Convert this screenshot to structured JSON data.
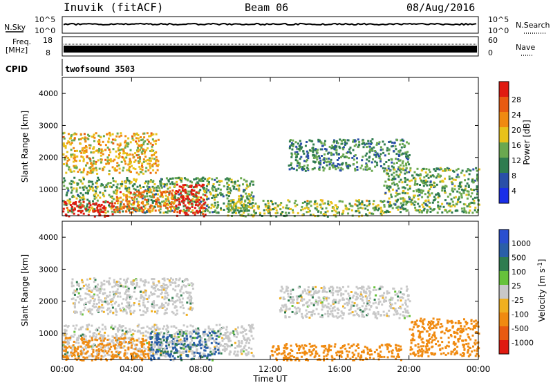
{
  "header": {
    "station": "Inuvik (fitACF)",
    "beam": "Beam 06",
    "date": "08/Aug/2016"
  },
  "status_panels": {
    "nsky": {
      "label": "N.Sky",
      "ticks": [
        "10^5",
        "10^0"
      ],
      "right_label": "N.Search",
      "right_ticks": [
        "10^5",
        "10^0"
      ]
    },
    "freq": {
      "label_1": "Freq.",
      "label_2": "[MHz]",
      "ticks": [
        "18",
        "8"
      ],
      "right_label": "Nave",
      "right_ticks": [
        "60",
        "0"
      ]
    },
    "cpid": {
      "label": "CPID",
      "value": "twofsound 3503"
    }
  },
  "colors": {
    "power_scale": [
      "#1a2ee8",
      "#2a4fa8",
      "#2f7c4f",
      "#6aa84f",
      "#e8c21a",
      "#f08a10",
      "#e85a10",
      "#e01a10"
    ],
    "velocity_scale": [
      "#2a4fd0",
      "#2a5fa8",
      "#2f7c4f",
      "#66c23a",
      "#c8c8c8",
      "#f0b020",
      "#f08a10",
      "#e85a10",
      "#e01a10"
    ],
    "ground_scatter": "#c8c8c8"
  },
  "chart_data": [
    {
      "type": "heatmap",
      "title": "",
      "xlabel": "Time UT",
      "ylabel": "Slant Range [km]",
      "xlim": [
        "00:00",
        "24:00"
      ],
      "ylim": [
        180,
        4500
      ],
      "x_ticks": [
        "00:00",
        "04:00",
        "08:00",
        "12:00",
        "16:00",
        "20:00",
        "00:00"
      ],
      "y_ticks": [
        1000,
        2000,
        3000,
        4000
      ],
      "colorbar": {
        "label": "Power [dB]",
        "ticks": [
          "28",
          "24",
          "20",
          "16",
          "12",
          "8",
          "4"
        ],
        "range": [
          0,
          30
        ]
      },
      "features": [
        {
          "t0": 0.0,
          "t1": 5.5,
          "r0": 1500,
          "r1": 2800,
          "level": 18
        },
        {
          "t0": 0.0,
          "t1": 11.0,
          "r0": 300,
          "r1": 1400,
          "level": 12
        },
        {
          "t0": 0.0,
          "t1": 3.0,
          "r0": 180,
          "r1": 650,
          "level": 30
        },
        {
          "t0": 6.5,
          "t1": 8.2,
          "r0": 180,
          "r1": 1200,
          "level": 30
        },
        {
          "t0": 3.0,
          "t1": 6.5,
          "r0": 300,
          "r1": 1000,
          "level": 22
        },
        {
          "t0": 9.5,
          "t1": 18.5,
          "r0": 180,
          "r1": 700,
          "level": 14
        },
        {
          "t0": 13.0,
          "t1": 20.0,
          "r0": 1600,
          "r1": 2600,
          "level": 10
        },
        {
          "t0": 18.5,
          "t1": 24.0,
          "r0": 300,
          "r1": 1700,
          "level": 12
        }
      ]
    },
    {
      "type": "heatmap",
      "title": "",
      "xlabel": "Time UT",
      "ylabel": "Slant Range [km]",
      "xlim": [
        "00:00",
        "24:00"
      ],
      "ylim": [
        180,
        4500
      ],
      "x_ticks": [
        "00:00",
        "04:00",
        "08:00",
        "12:00",
        "16:00",
        "20:00",
        "00:00"
      ],
      "y_ticks": [
        1000,
        2000,
        3000,
        4000
      ],
      "colorbar": {
        "label": "Velocity [m s^-1]",
        "ticks": [
          "1000",
          "500",
          "100",
          "25",
          "-25",
          "-100",
          "-500",
          "-1000"
        ],
        "range": [
          -1000,
          1000
        ]
      },
      "features": [
        {
          "t0": 0.5,
          "t1": 7.5,
          "r0": 1600,
          "r1": 2750,
          "kind": "ground"
        },
        {
          "t0": 0.0,
          "t1": 11.0,
          "r0": 300,
          "r1": 1300,
          "kind": "ground"
        },
        {
          "t0": 0.0,
          "t1": 5.0,
          "r0": 180,
          "r1": 900,
          "velocity": -300
        },
        {
          "t0": 5.0,
          "t1": 9.0,
          "r0": 180,
          "r1": 1100,
          "velocity": 120
        },
        {
          "t0": 12.5,
          "t1": 20.0,
          "r0": 1500,
          "r1": 2500,
          "kind": "ground"
        },
        {
          "t0": 12.0,
          "t1": 19.5,
          "r0": 180,
          "r1": 700,
          "velocity": -250
        },
        {
          "t0": 20.0,
          "t1": 24.0,
          "r0": 300,
          "r1": 1500,
          "velocity": -350
        }
      ]
    }
  ]
}
